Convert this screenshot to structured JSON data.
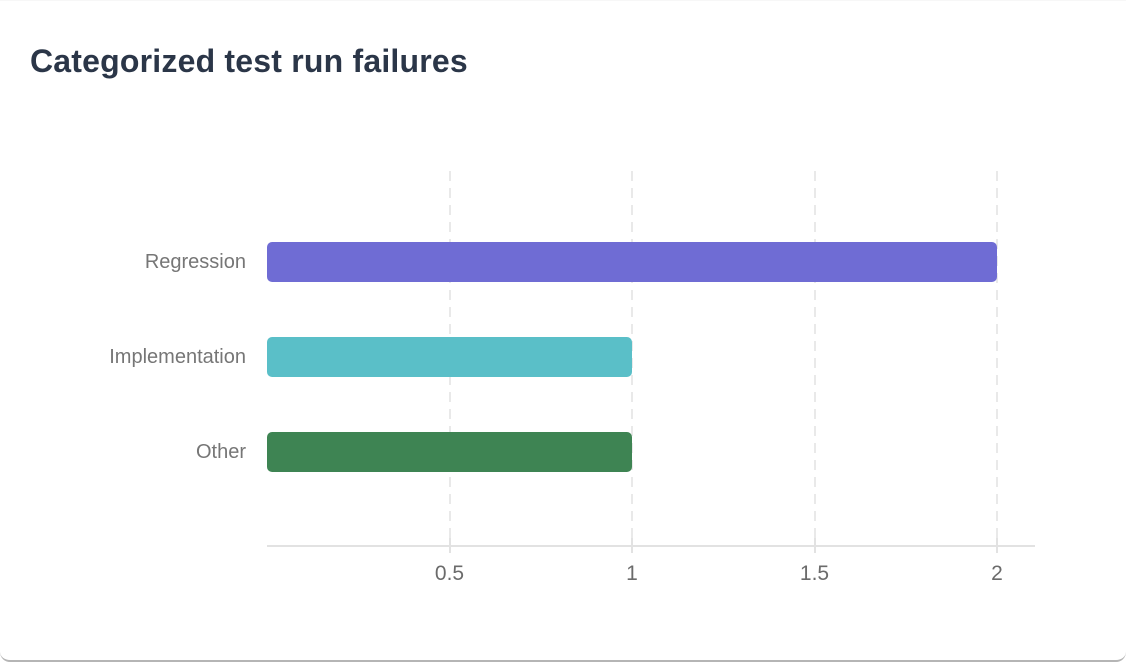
{
  "page": {
    "title": "Categorized test run failures"
  },
  "chart_data": {
    "type": "bar",
    "orientation": "horizontal",
    "title": "Categorized test run failures",
    "categories": [
      "Regression",
      "Implementation",
      "Other"
    ],
    "values": [
      2,
      1,
      1
    ],
    "bar_colors": [
      "#6f6cd4",
      "#5abfc8",
      "#3e8453"
    ],
    "xticks": [
      0.5,
      1,
      1.5,
      2
    ],
    "xtick_labels": [
      "0.5",
      "1",
      "1.5",
      "2"
    ],
    "xlim": [
      0,
      2.1
    ],
    "xlabel": "",
    "ylabel": "",
    "grid": "vertical-dashed",
    "legend": "none"
  },
  "theme": {
    "background": "#ffffff",
    "title_color": "#2b3648",
    "label_color": "#767676",
    "tick_label_color": "#6b6b6b",
    "grid_color": "#e9e9e9",
    "axis_color": "#e2e2e2",
    "card_border_color": "#b5b5b5"
  }
}
